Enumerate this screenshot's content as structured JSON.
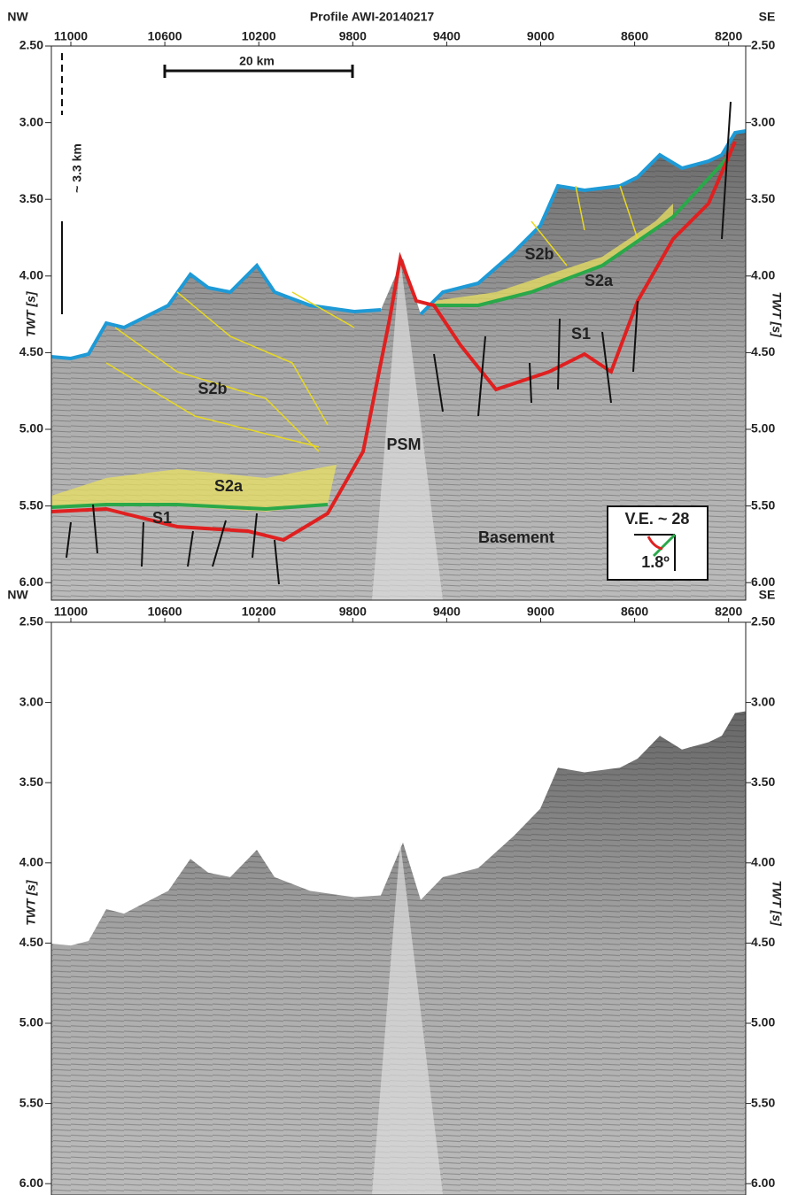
{
  "top_panel": {
    "title": "Profile AWI-20140217",
    "left_corner": "NW",
    "right_corner": "SE",
    "x_ticks": [
      "11000",
      "10600",
      "10200",
      "9800",
      "9400",
      "9000",
      "8600",
      "8200"
    ],
    "y_ticks": [
      "2.50",
      "3.00",
      "3.50",
      "4.00",
      "4.50",
      "5.00",
      "5.50",
      "6.00"
    ],
    "y_label": "TWT [s]",
    "scale_bar": "20 km",
    "depth_label": "~ 3.3 km",
    "labels": [
      "S2b",
      "S2a",
      "S1",
      "PSM",
      "Basement",
      "S2b",
      "S2a",
      "S1"
    ],
    "ve_box": {
      "title": "V.E. ~ 28",
      "angle": "1.8º"
    }
  },
  "bottom_panel": {
    "left_corner": "NW",
    "right_corner": "SE",
    "x_ticks": [
      "11000",
      "10600",
      "10200",
      "9800",
      "9400",
      "9000",
      "8600",
      "8200"
    ],
    "y_ticks": [
      "2.50",
      "3.00",
      "3.50",
      "4.00",
      "4.50",
      "5.00",
      "5.50",
      "6.00"
    ],
    "y_label": "TWT [s]"
  }
}
